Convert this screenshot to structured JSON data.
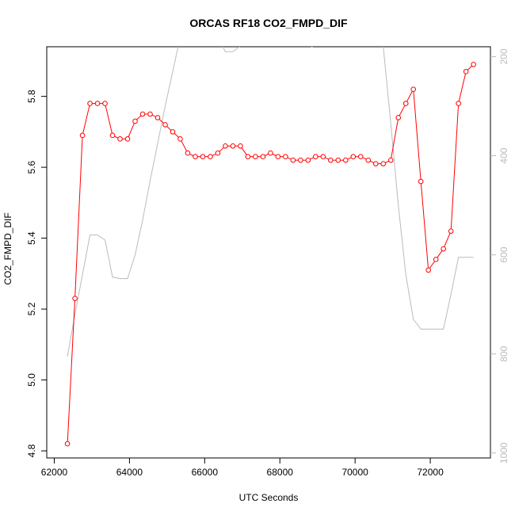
{
  "chart_data": {
    "type": "line",
    "title": "ORCAS RF18 CO2_FMPD_DIF",
    "xlabel": "UTC Seconds",
    "ylabel": "CO2_FMPD_DIF",
    "xlim": [
      61800,
      73600
    ],
    "ylim": [
      4.78,
      5.94
    ],
    "y2lim": [
      1010,
      180
    ],
    "x_ticks": [
      62000,
      64000,
      66000,
      68000,
      70000,
      72000
    ],
    "y_ticks": [
      4.8,
      5.0,
      5.2,
      5.4,
      5.6,
      5.8
    ],
    "y2_ticks": [
      200,
      400,
      600,
      800,
      1000
    ],
    "grid": false,
    "series": [
      {
        "color": "#ff0000",
        "axis": "left",
        "marker": "open-circle",
        "x": [
          62350,
          62550,
          62750,
          62950,
          63150,
          63350,
          63550,
          63750,
          63950,
          64150,
          64350,
          64550,
          64750,
          64950,
          65150,
          65350,
          65550,
          65750,
          65950,
          66150,
          66350,
          66550,
          66750,
          66950,
          67150,
          67350,
          67550,
          67750,
          67950,
          68150,
          68350,
          68550,
          68750,
          68950,
          69150,
          69350,
          69550,
          69750,
          69950,
          70150,
          70350,
          70550,
          70750,
          70950,
          71150,
          71350,
          71550,
          71750,
          71950,
          72150,
          72350,
          72550,
          72750,
          72950,
          73150
        ],
        "y": [
          4.82,
          5.23,
          5.69,
          5.78,
          5.78,
          5.78,
          5.69,
          5.68,
          5.68,
          5.73,
          5.75,
          5.75,
          5.74,
          5.72,
          5.7,
          5.68,
          5.64,
          5.63,
          5.63,
          5.63,
          5.64,
          5.66,
          5.66,
          5.66,
          5.63,
          5.63,
          5.63,
          5.64,
          5.63,
          5.63,
          5.62,
          5.62,
          5.62,
          5.63,
          5.63,
          5.62,
          5.62,
          5.62,
          5.63,
          5.63,
          5.62,
          5.61,
          5.61,
          5.62,
          5.74,
          5.78,
          5.82,
          5.56,
          5.31,
          5.34,
          5.37,
          5.42,
          5.78,
          5.87,
          5.89
        ]
      },
      {
        "color": "#bbbbbb",
        "axis": "right",
        "marker": "none",
        "segments": [
          {
            "x": [
              62350,
              62550,
              62750,
              62950,
              63150,
              63350,
              63550,
              63750,
              63950,
              64150,
              64350,
              64550,
              64750,
              64950,
              65150,
              65350,
              65550
            ],
            "y": [
              805,
              720,
              640,
              560,
              560,
              570,
              645,
              648,
              648,
              600,
              530,
              450,
              375,
              300,
              230,
              160,
              100
            ]
          },
          {
            "x": [
              66450,
              66550,
              66750,
              66950
            ],
            "y": [
              175,
              190,
              190,
              178
            ]
          },
          {
            "x": [
              68750,
              68850,
              68950
            ],
            "y": [
              178,
              180,
              178
            ]
          },
          {
            "x": [
              70650,
              70750,
              70950,
              71150,
              71350,
              71550,
              71750,
              71950,
              72150,
              72350,
              72550,
              72750,
              72950,
              73150
            ],
            "y": [
              100,
              180,
              335,
              500,
              640,
              730,
              750,
              750,
              750,
              750,
              680,
              605,
              605,
              605
            ]
          }
        ]
      }
    ]
  }
}
